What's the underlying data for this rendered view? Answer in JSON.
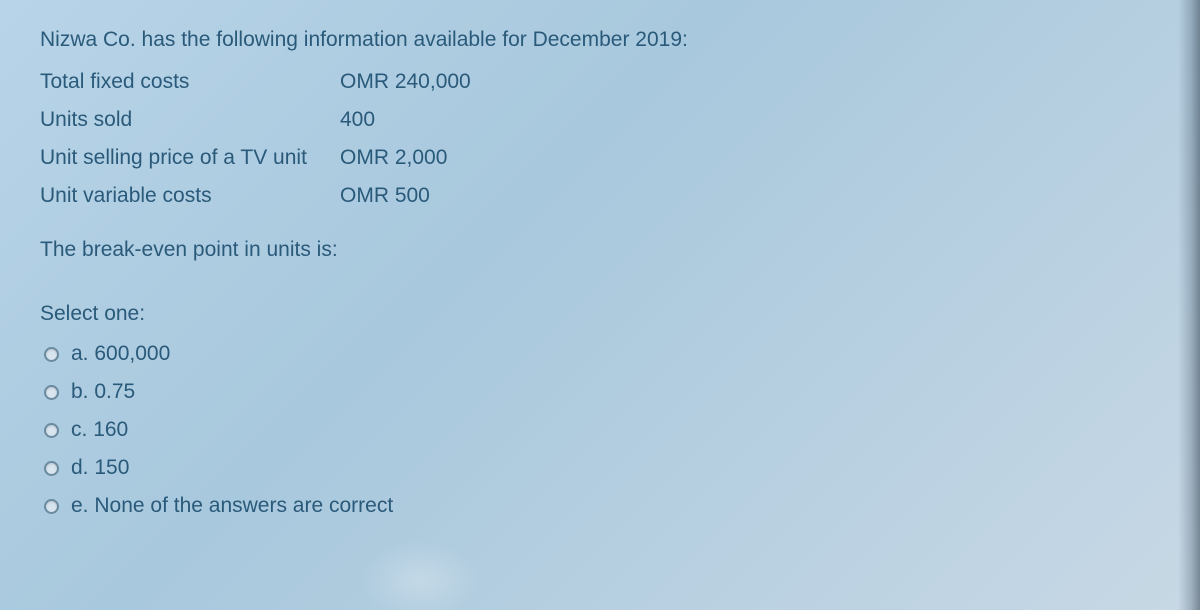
{
  "question": {
    "intro": "Nizwa Co. has the following information available for December 2019:",
    "rows": [
      {
        "label": "Total fixed costs",
        "value": "OMR 240,000"
      },
      {
        "label": "Units sold",
        "value": "400"
      },
      {
        "label": "Unit selling price of a TV unit",
        "value": "OMR 2,000"
      },
      {
        "label": "Unit variable costs",
        "value": "OMR 500"
      }
    ],
    "prompt": "The break-even point in units is:"
  },
  "select_label": "Select one:",
  "options": [
    {
      "letter": "a.",
      "text": "600,000"
    },
    {
      "letter": "b.",
      "text": "0.75"
    },
    {
      "letter": "c.",
      "text": "160"
    },
    {
      "letter": "d.",
      "text": "150"
    },
    {
      "letter": "e.",
      "text": "None of the answers are correct"
    }
  ],
  "colors": {
    "text": "#2a5a7a",
    "bg_start": "#b8d4e8",
    "bg_end": "#c8d8e5",
    "radio_border": "#6a8aa0"
  }
}
